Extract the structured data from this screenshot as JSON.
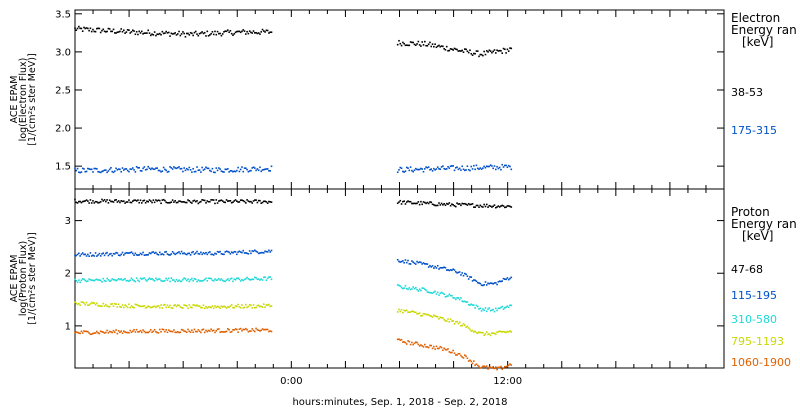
{
  "chart_data": {
    "type": "scatter",
    "xlabel": "hours:minutes, Sep.  1, 2018 - Sep.  2, 2018",
    "x_unit": "hours relative to 0:00 Sep. 2, 2018",
    "xlim": [
      -12,
      24
    ],
    "x_ticks": [
      {
        "value": 0,
        "label": "0:00"
      },
      {
        "value": 12,
        "label": "12:00"
      }
    ],
    "panels": [
      {
        "ylabel_lines": [
          "ACE EPAM",
          "log(Electron Flux)",
          "[1/(cm²s ster MeV)]"
        ],
        "ylim": [
          1.2,
          3.55
        ],
        "y_ticks": [
          1.5,
          2.0,
          2.5,
          3.0,
          3.5
        ],
        "y_tick_labels": [
          "1.5",
          "2.0",
          "2.5",
          "3.0",
          "3.5"
        ],
        "legend_title": [
          "Electron",
          "Energy ran",
          "[keV]"
        ],
        "series": [
          {
            "name": "38-53",
            "color": "#000000",
            "segments": [
              {
                "x": [
                  -12,
                  -8.8,
                  -5.6,
                  -2.6,
                  -1.1
                ],
                "y": [
                  3.3,
                  3.26,
                  3.23,
                  3.26,
                  3.26
                ]
              },
              {
                "x": [
                  5.9,
                  7.5,
                  9.3,
                  10.5,
                  12.2
                ],
                "y": [
                  3.12,
                  3.1,
                  3.02,
                  2.97,
                  3.03
                ]
              }
            ]
          },
          {
            "name": "175-315",
            "color": "#0050c8",
            "segments": [
              {
                "x": [
                  -12,
                  -8,
                  -4,
                  -1.1
                ],
                "y": [
                  1.44,
                  1.46,
                  1.45,
                  1.47
                ]
              },
              {
                "x": [
                  5.9,
                  8.8,
                  12.2
                ],
                "y": [
                  1.45,
                  1.47,
                  1.49
                ]
              }
            ]
          }
        ]
      },
      {
        "ylabel_lines": [
          "ACE EPAM",
          "log(Proton Flux)",
          "[1/(cm²s ster MeV)]"
        ],
        "ylim": [
          0.2,
          3.6
        ],
        "y_ticks": [
          1,
          2,
          3
        ],
        "y_tick_labels": [
          "1",
          "2",
          "3"
        ],
        "legend_title": [
          "Proton",
          "Energy ran",
          "[keV]"
        ],
        "series": [
          {
            "name": "47-68",
            "color": "#000000",
            "segments": [
              {
                "x": [
                  -12,
                  -6,
                  -1.1
                ],
                "y": [
                  3.37,
                  3.36,
                  3.36
                ]
              },
              {
                "x": [
                  5.9,
                  9,
                  12.2
                ],
                "y": [
                  3.35,
                  3.3,
                  3.27
                ]
              }
            ]
          },
          {
            "name": "115-195",
            "color": "#0050c8",
            "segments": [
              {
                "x": [
                  -12,
                  -8,
                  -4,
                  -1.1
                ],
                "y": [
                  2.35,
                  2.38,
                  2.38,
                  2.42
                ]
              },
              {
                "x": [
                  5.9,
                  7.6,
                  9.3,
                  10.5,
                  11.3,
                  12.2
                ],
                "y": [
                  2.25,
                  2.15,
                  2.02,
                  1.8,
                  1.8,
                  1.93
                ]
              }
            ]
          },
          {
            "name": "310-580",
            "color": "#1ed8d8",
            "segments": [
              {
                "x": [
                  -12,
                  -8,
                  -4,
                  -1.1
                ],
                "y": [
                  1.86,
                  1.88,
                  1.87,
                  1.9
                ]
              },
              {
                "x": [
                  5.9,
                  7.6,
                  9.3,
                  10.5,
                  11.3,
                  12.2
                ],
                "y": [
                  1.75,
                  1.67,
                  1.52,
                  1.32,
                  1.3,
                  1.38
                ]
              }
            ]
          },
          {
            "name": "795-1193",
            "color": "#c8d800",
            "segments": [
              {
                "x": [
                  -12,
                  -9,
                  -5,
                  -1.1
                ],
                "y": [
                  1.43,
                  1.38,
                  1.36,
                  1.38
                ]
              },
              {
                "x": [
                  5.9,
                  7.6,
                  9.3,
                  10.5,
                  11.3,
                  12.2
                ],
                "y": [
                  1.3,
                  1.2,
                  1.05,
                  0.85,
                  0.85,
                  0.9
                ]
              }
            ]
          },
          {
            "name": "1060-1900",
            "color": "#e06000",
            "segments": [
              {
                "x": [
                  -12,
                  -8,
                  -4,
                  -1.1
                ],
                "y": [
                  0.87,
                  0.9,
                  0.91,
                  0.92
                ]
              },
              {
                "x": [
                  5.9,
                  7.2,
                  8.6,
                  9.6,
                  10.5,
                  11.5,
                  12.2
                ],
                "y": [
                  0.72,
                  0.64,
                  0.55,
                  0.42,
                  0.22,
                  0.18,
                  0.27
                ]
              }
            ]
          }
        ]
      }
    ]
  }
}
